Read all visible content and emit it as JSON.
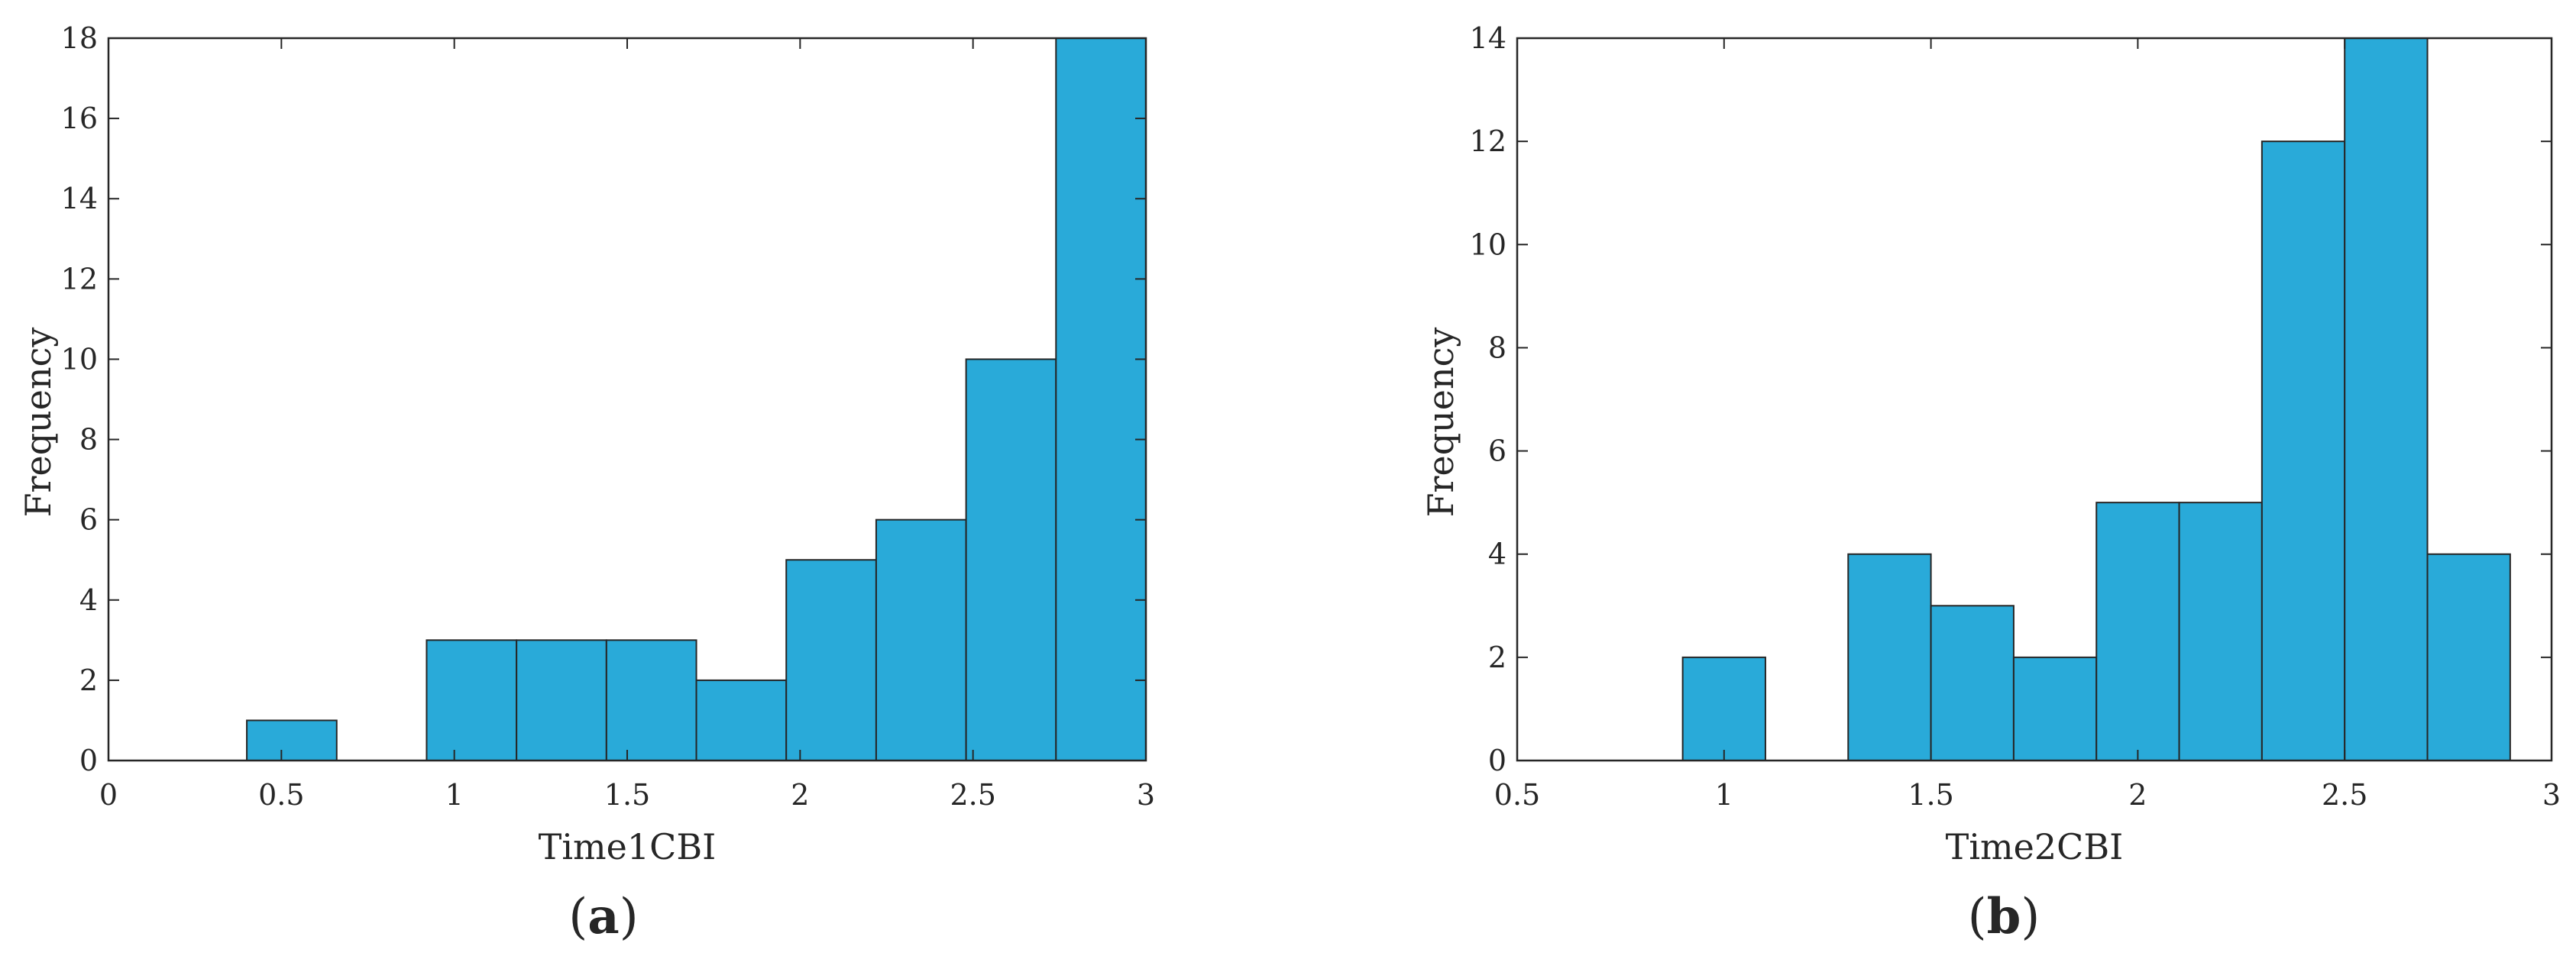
{
  "style": {
    "bar_color": "#29aad9",
    "edge_color": "#262626",
    "axis_color": "#262626",
    "background": "#ffffff"
  },
  "chart_data": [
    {
      "type": "bar",
      "panel_label": "(a)",
      "panel_letter": "a",
      "xlabel": "Time1CBI",
      "ylabel": "Frequency",
      "xlim": [
        0,
        3
      ],
      "ylim": [
        0,
        18
      ],
      "xticks": [
        0,
        0.5,
        1,
        1.5,
        2,
        2.5,
        3
      ],
      "xtick_labels": [
        "0",
        "0.5",
        "1",
        "1.5",
        "2",
        "2.5",
        "3"
      ],
      "yticks": [
        0,
        2,
        4,
        6,
        8,
        10,
        12,
        14,
        16,
        18
      ],
      "ytick_labels": [
        "0",
        "2",
        "4",
        "6",
        "8",
        "10",
        "12",
        "14",
        "16",
        "18"
      ],
      "bin_edges": [
        0.4,
        0.66,
        0.92,
        1.18,
        1.44,
        1.7,
        1.96,
        2.22,
        2.48,
        2.74,
        3.0
      ],
      "values": [
        1,
        0,
        3,
        3,
        3,
        2,
        5,
        6,
        10,
        18
      ]
    },
    {
      "type": "bar",
      "panel_label": "(b)",
      "panel_letter": "b",
      "xlabel": "Time2CBI",
      "ylabel": "Frequency",
      "xlim": [
        0.5,
        3
      ],
      "ylim": [
        0,
        14
      ],
      "xticks": [
        0.5,
        1,
        1.5,
        2,
        2.5,
        3
      ],
      "xtick_labels": [
        "0.5",
        "1",
        "1.5",
        "2",
        "2.5",
        "3"
      ],
      "yticks": [
        0,
        2,
        4,
        6,
        8,
        10,
        12,
        14
      ],
      "ytick_labels": [
        "0",
        "2",
        "4",
        "6",
        "8",
        "10",
        "12",
        "14"
      ],
      "bin_edges": [
        0.9,
        1.1,
        1.3,
        1.5,
        1.7,
        1.9,
        2.1,
        2.3,
        2.5,
        2.7,
        2.9
      ],
      "values": [
        2,
        0,
        4,
        3,
        2,
        5,
        5,
        12,
        14,
        4
      ]
    }
  ]
}
